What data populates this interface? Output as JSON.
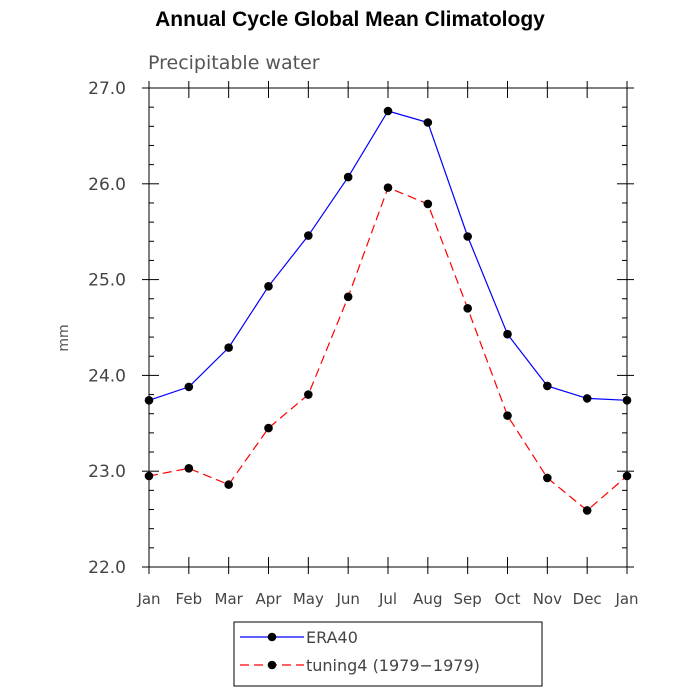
{
  "chart_data": {
    "type": "line",
    "title": "Annual Cycle Global Mean Climatology",
    "subtitle": "Precipitable water",
    "xlabel": "",
    "ylabel": "mm",
    "categories": [
      "Jan",
      "Feb",
      "Mar",
      "Apr",
      "May",
      "Jun",
      "Jul",
      "Aug",
      "Sep",
      "Oct",
      "Nov",
      "Dec",
      "Jan"
    ],
    "ylim": [
      22.0,
      27.0
    ],
    "yticks": [
      "22.0",
      "23.0",
      "24.0",
      "25.0",
      "26.0",
      "27.0"
    ],
    "grid": false,
    "legend_position": "bottom",
    "series": [
      {
        "name": "ERA40",
        "color": "#0000ff",
        "dash": "solid",
        "values": [
          23.74,
          23.88,
          24.29,
          24.93,
          25.46,
          26.07,
          26.76,
          26.64,
          25.45,
          24.43,
          23.89,
          23.76,
          23.74
        ]
      },
      {
        "name": "tuning4 (1979−1979)",
        "color": "#ff0000",
        "dash": "dashed",
        "values": [
          22.95,
          23.03,
          22.86,
          23.45,
          23.8,
          24.82,
          25.96,
          25.79,
          24.7,
          23.58,
          22.93,
          22.59,
          22.95
        ]
      }
    ]
  }
}
